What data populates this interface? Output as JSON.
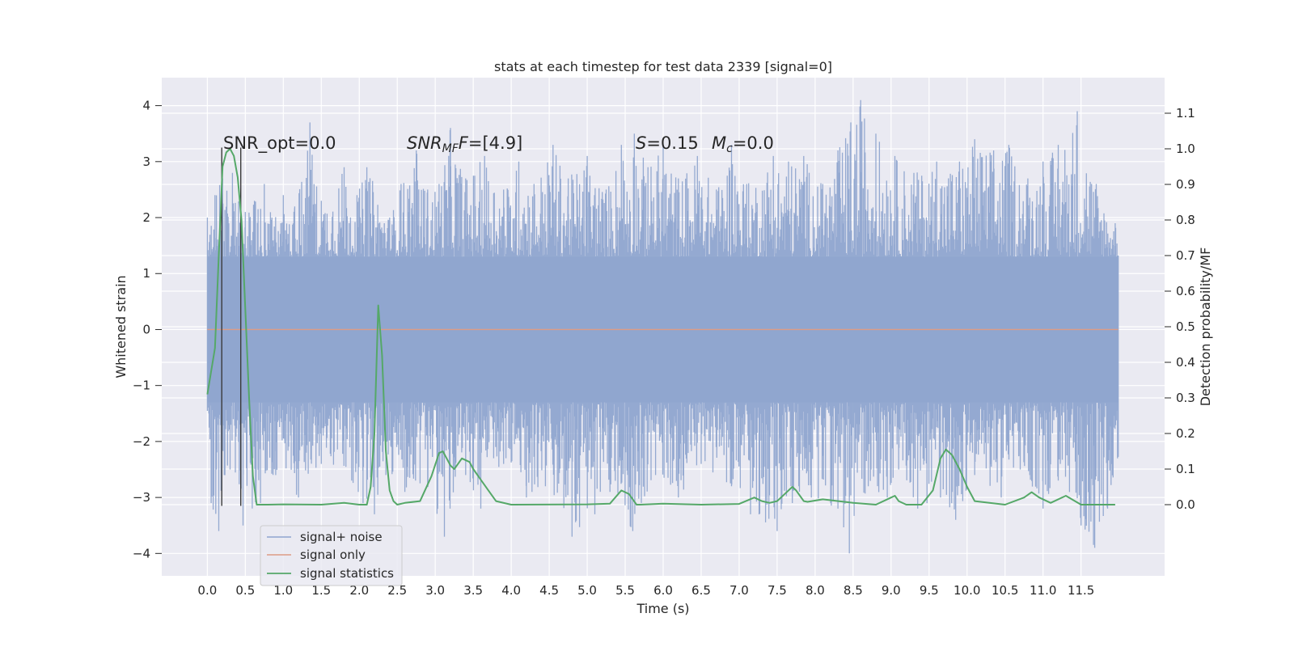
{
  "chart_data": {
    "type": "line",
    "title": "stats at each timestep for test data 2339 [signal=0]",
    "xlabel": "Time (s)",
    "ylabel": "Whitened strain",
    "ylabel_right": "Detection probability/MF",
    "xlim": [
      -0.6,
      12.6
    ],
    "ylim": [
      -4.4,
      4.5
    ],
    "ylim_right": [
      -0.2,
      1.2
    ],
    "x_ticks": [
      "0.0",
      "0.5",
      "1.0",
      "1.5",
      "2.0",
      "2.5",
      "3.0",
      "3.5",
      "4.0",
      "4.5",
      "5.0",
      "5.5",
      "6.0",
      "6.5",
      "7.0",
      "7.5",
      "8.0",
      "8.5",
      "9.0",
      "9.5",
      "10.0",
      "10.5",
      "11.0",
      "11.5"
    ],
    "y_ticks_left": [
      -4,
      -3,
      -2,
      -1,
      0,
      1,
      2,
      3,
      4
    ],
    "y_ticks_left_labels": [
      "−4",
      "−3",
      "−2",
      "−1",
      "0",
      "1",
      "2",
      "3",
      "4"
    ],
    "y_ticks_right": [
      "0.0",
      "0.1",
      "0.2",
      "0.3",
      "0.4",
      "0.5",
      "0.6",
      "0.7",
      "0.8",
      "0.9",
      "1.0",
      "1.1"
    ],
    "grid": true,
    "legend_position": "lower-left",
    "annotations": {
      "snr_opt": "SNR_opt=0.0",
      "snr_mf_main": "SNR",
      "snr_mf_sub": "MF",
      "snr_mf_value": "=[4.9]",
      "s_symbol": "S",
      "s_value": "=0.15",
      "mc_symbol": "M",
      "mc_sub": "c",
      "mc_value": "=0.0"
    },
    "vertical_markers_x": [
      0.19,
      0.44
    ],
    "series": [
      {
        "name": "signal+ noise",
        "color": "#8fa5cf",
        "axis": "left",
        "x_range": [
          0.0,
          11.99
        ],
        "band": [
          -1.3,
          1.3
        ],
        "upper_extremes": [
          [
            0.0,
            2.0
          ],
          [
            0.1,
            2.4
          ],
          [
            0.2,
            2.7
          ],
          [
            0.33,
            2.8
          ],
          [
            0.5,
            2.1
          ],
          [
            0.62,
            2.3
          ],
          [
            0.75,
            2.6
          ],
          [
            0.85,
            2.0
          ],
          [
            1.0,
            2.4
          ],
          [
            1.15,
            2.2
          ],
          [
            1.35,
            3.7
          ],
          [
            1.5,
            2.3
          ],
          [
            1.8,
            2.9
          ],
          [
            1.97,
            2.4
          ],
          [
            2.1,
            2.9
          ],
          [
            2.4,
            2.0
          ],
          [
            2.55,
            2.6
          ],
          [
            2.75,
            3.2
          ],
          [
            2.9,
            2.5
          ],
          [
            3.05,
            2.6
          ],
          [
            3.2,
            3.6
          ],
          [
            3.4,
            2.7
          ],
          [
            3.65,
            3.1
          ],
          [
            3.9,
            2.5
          ],
          [
            4.1,
            3.0
          ],
          [
            4.3,
            2.6
          ],
          [
            4.55,
            3.3
          ],
          [
            4.75,
            2.7
          ],
          [
            5.0,
            3.1
          ],
          [
            5.25,
            2.5
          ],
          [
            5.45,
            3.3
          ],
          [
            5.62,
            3.5
          ],
          [
            5.8,
            2.9
          ],
          [
            6.0,
            3.3
          ],
          [
            6.2,
            2.7
          ],
          [
            6.45,
            3.1
          ],
          [
            6.7,
            2.5
          ],
          [
            6.9,
            3.3
          ],
          [
            7.1,
            2.6
          ],
          [
            7.45,
            3.1
          ],
          [
            7.65,
            3.0
          ],
          [
            7.85,
            3.1
          ],
          [
            8.1,
            2.6
          ],
          [
            8.3,
            3.2
          ],
          [
            8.47,
            3.7
          ],
          [
            8.6,
            4.1
          ],
          [
            8.8,
            3.5
          ],
          [
            9.05,
            3.1
          ],
          [
            9.3,
            2.8
          ],
          [
            9.6,
            3.0
          ],
          [
            9.9,
            3.0
          ],
          [
            10.1,
            3.4
          ],
          [
            10.35,
            3.2
          ],
          [
            10.55,
            3.3
          ],
          [
            10.8,
            2.7
          ],
          [
            11.0,
            3.0
          ],
          [
            11.2,
            3.3
          ],
          [
            11.45,
            3.9
          ],
          [
            11.7,
            2.6
          ],
          [
            11.95,
            1.9
          ]
        ],
        "lower_extremes": [
          [
            0.02,
            -1.5
          ],
          [
            0.05,
            -3.1
          ],
          [
            0.15,
            -3.6
          ],
          [
            0.3,
            -2.5
          ],
          [
            0.47,
            -3.5
          ],
          [
            0.7,
            -3.1
          ],
          [
            0.9,
            -2.6
          ],
          [
            1.2,
            -3.0
          ],
          [
            1.5,
            -2.4
          ],
          [
            1.9,
            -2.7
          ],
          [
            2.05,
            -3.1
          ],
          [
            2.2,
            -3.3
          ],
          [
            2.35,
            -2.6
          ],
          [
            2.6,
            -2.9
          ],
          [
            2.9,
            -2.8
          ],
          [
            3.12,
            -3.7
          ],
          [
            3.4,
            -2.6
          ],
          [
            3.6,
            -3.2
          ],
          [
            3.9,
            -2.4
          ],
          [
            4.2,
            -3.0
          ],
          [
            4.45,
            -2.8
          ],
          [
            4.8,
            -3.7
          ],
          [
            5.1,
            -3.3
          ],
          [
            5.3,
            -2.9
          ],
          [
            5.6,
            -3.6
          ],
          [
            5.9,
            -2.6
          ],
          [
            6.2,
            -3.0
          ],
          [
            6.5,
            -2.4
          ],
          [
            6.9,
            -2.8
          ],
          [
            7.15,
            -3.3
          ],
          [
            7.5,
            -3.6
          ],
          [
            7.7,
            -3.1
          ],
          [
            7.95,
            -3.0
          ],
          [
            8.3,
            -3.2
          ],
          [
            8.45,
            -4.0
          ],
          [
            8.7,
            -2.8
          ],
          [
            8.95,
            -3.0
          ],
          [
            9.1,
            -2.5
          ],
          [
            9.35,
            -3.2
          ],
          [
            9.65,
            -3.0
          ],
          [
            9.85,
            -3.4
          ],
          [
            10.1,
            -2.6
          ],
          [
            10.45,
            -3.0
          ],
          [
            10.7,
            -2.5
          ],
          [
            11.0,
            -3.2
          ],
          [
            11.2,
            -2.7
          ],
          [
            11.5,
            -3.5
          ],
          [
            11.68,
            -3.9
          ],
          [
            11.85,
            -3.2
          ],
          [
            11.98,
            -2.3
          ]
        ]
      },
      {
        "name": "signal only",
        "color": "#dd9b85",
        "axis": "left",
        "x": [
          0.0,
          11.99
        ],
        "y": [
          0.0,
          0.0
        ]
      },
      {
        "name": "signal statistics",
        "color": "#55a868",
        "axis": "right",
        "x": [
          0.0,
          0.1,
          0.15,
          0.2,
          0.25,
          0.3,
          0.35,
          0.4,
          0.45,
          0.5,
          0.55,
          0.6,
          0.65,
          0.7,
          0.8,
          1.0,
          1.5,
          1.8,
          2.0,
          2.1,
          2.15,
          2.2,
          2.25,
          2.3,
          2.35,
          2.4,
          2.45,
          2.5,
          2.6,
          2.8,
          2.95,
          3.05,
          3.1,
          3.15,
          3.2,
          3.25,
          3.3,
          3.35,
          3.45,
          3.5,
          3.6,
          3.7,
          3.8,
          4.0,
          5.0,
          5.3,
          5.45,
          5.55,
          5.6,
          5.65,
          5.7,
          6.0,
          6.5,
          7.0,
          7.2,
          7.3,
          7.4,
          7.5,
          7.6,
          7.7,
          7.75,
          7.8,
          7.85,
          7.9,
          8.1,
          8.5,
          8.8,
          9.0,
          9.05,
          9.1,
          9.2,
          9.4,
          9.55,
          9.65,
          9.72,
          9.8,
          9.9,
          10.0,
          10.1,
          10.5,
          10.75,
          10.85,
          10.95,
          11.1,
          11.3,
          11.5,
          11.95
        ],
        "y": [
          0.31,
          0.44,
          0.7,
          0.95,
          0.99,
          1.0,
          0.98,
          0.92,
          0.8,
          0.55,
          0.3,
          0.08,
          0.0,
          0.0,
          0.0,
          0.001,
          0.0,
          0.005,
          0.0,
          0.0,
          0.05,
          0.2,
          0.56,
          0.42,
          0.15,
          0.04,
          0.01,
          0.0,
          0.005,
          0.01,
          0.08,
          0.145,
          0.15,
          0.13,
          0.11,
          0.1,
          0.115,
          0.13,
          0.12,
          0.1,
          0.07,
          0.04,
          0.01,
          0.0,
          0.001,
          0.003,
          0.04,
          0.03,
          0.015,
          0.0,
          0.0,
          0.003,
          0.0,
          0.002,
          0.02,
          0.01,
          0.005,
          0.01,
          0.03,
          0.05,
          0.04,
          0.025,
          0.01,
          0.008,
          0.015,
          0.005,
          0.0,
          0.02,
          0.025,
          0.01,
          0.0,
          0.0,
          0.04,
          0.13,
          0.155,
          0.14,
          0.1,
          0.05,
          0.01,
          0.0,
          0.02,
          0.035,
          0.02,
          0.005,
          0.025,
          0.0,
          0.0
        ]
      }
    ]
  }
}
